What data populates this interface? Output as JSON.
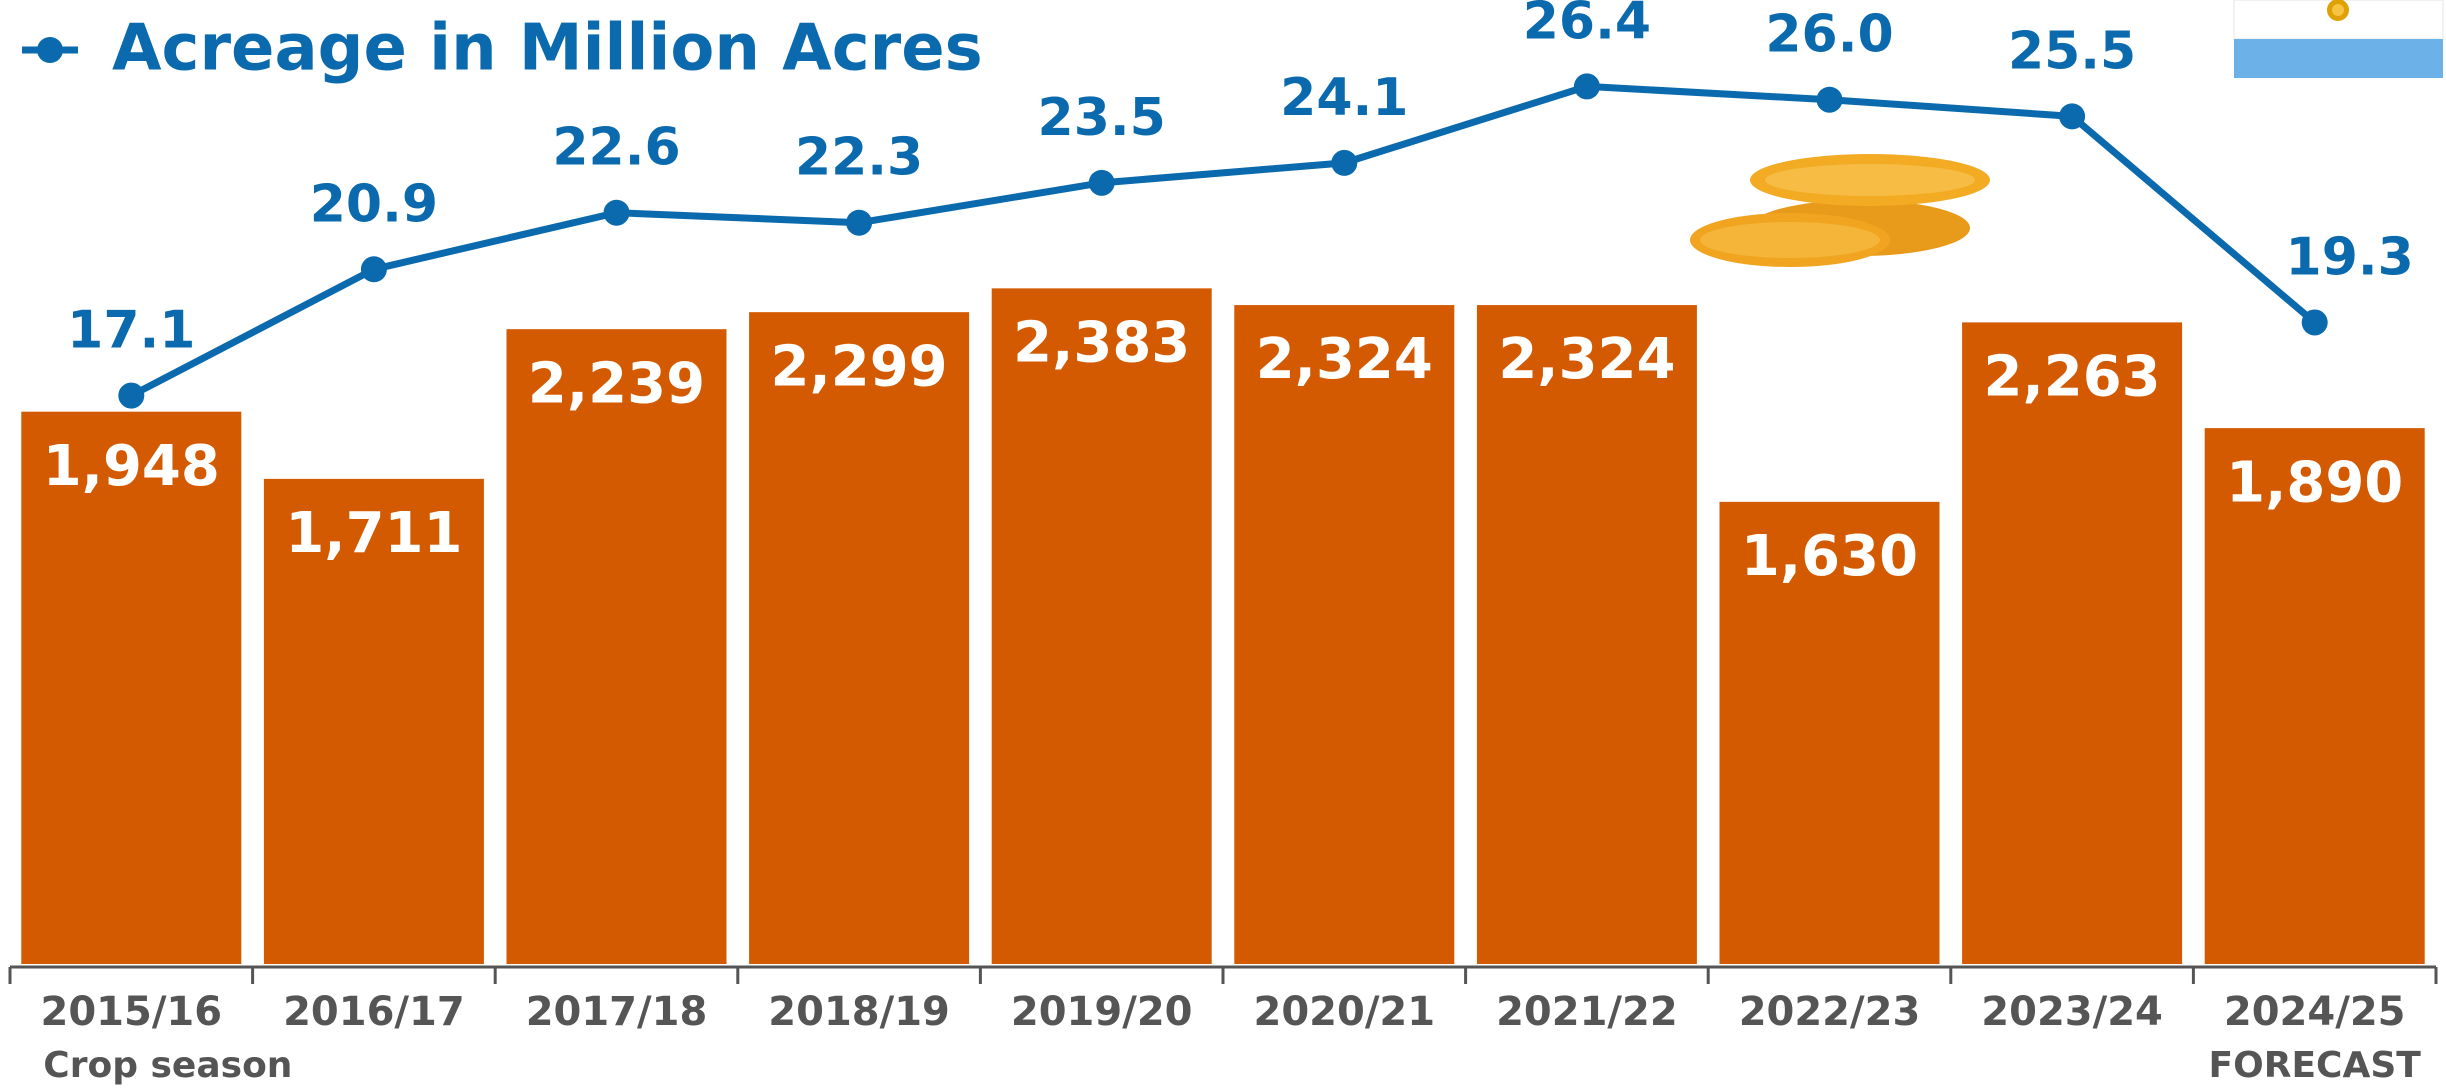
{
  "chart_data": {
    "type": "bar",
    "categories": [
      "2015/16",
      "2016/17",
      "2017/18",
      "2018/19",
      "2019/20",
      "2020/21",
      "2021/22",
      "2022/23",
      "2023/24",
      "2024/25"
    ],
    "series": [
      {
        "color": "#d35a00",
        "axis": "y",
        "values": [
          1948,
          1711,
          2239,
          2299,
          2383,
          2324,
          2324,
          1630,
          2263,
          1890
        ],
        "value_labels": [
          "1,948",
          "1,711",
          "2,239",
          "2,299",
          "2,383",
          "2,324",
          "2,324",
          "1,630",
          "2,263",
          "1,890"
        ]
      },
      {
        "name": "Acreage in Million Acres",
        "type": "line",
        "color": "#0a6aad",
        "axis": "y2",
        "values": [
          17.1,
          20.9,
          22.6,
          22.3,
          23.5,
          24.1,
          26.4,
          26.0,
          25.5,
          19.3
        ],
        "value_labels": [
          "17.1",
          "20.9",
          "22.6",
          "22.3",
          "23.5",
          "24.1",
          "26.4",
          "26.0",
          "25.5",
          "19.3"
        ]
      }
    ],
    "ylim": [
      0,
      3400
    ],
    "y2lim": [
      0,
      29
    ],
    "annotations": [
      "Crop season",
      "FORECAST"
    ],
    "legend": "top-left"
  }
}
